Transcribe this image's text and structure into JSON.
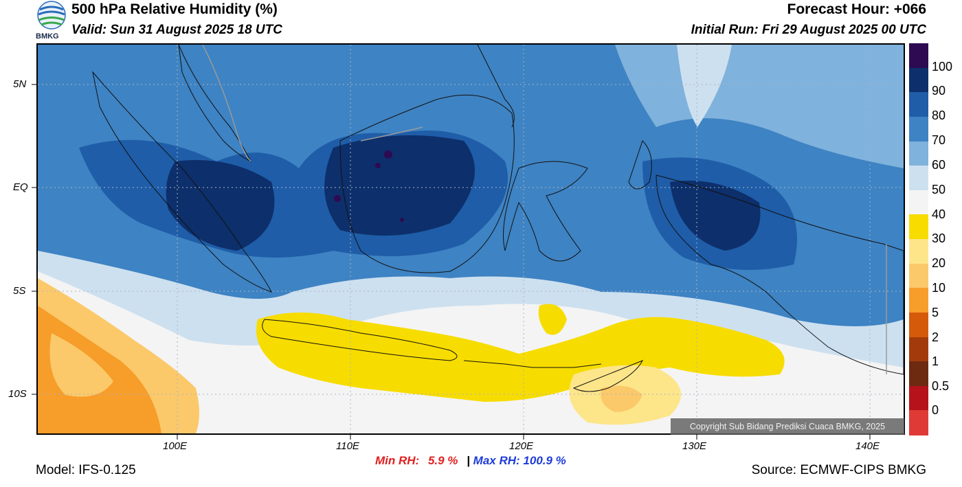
{
  "header": {
    "title": "500 hPa Relative Humidity (%)",
    "valid": "Valid: Sun 31 August 2025 18 UTC",
    "forecast_hour": "Forecast Hour: +066",
    "initial_run": "Initial Run: Fri 29 August 2025 00 UTC",
    "logo_text": "BMKG"
  },
  "axes": {
    "lat_labels": [
      "5N",
      "EQ",
      "5S",
      "10S"
    ],
    "lon_labels": [
      "100E",
      "110E",
      "120E",
      "130E",
      "140E"
    ]
  },
  "colorbar": {
    "labels": [
      "100",
      "90",
      "80",
      "70",
      "60",
      "50",
      "40",
      "30",
      "20",
      "10",
      "5",
      "2",
      "1",
      "0.5",
      "0"
    ],
    "colors": [
      "#2e0a52",
      "#0d2f6b",
      "#1f5da8",
      "#3e83c3",
      "#7fb2dc",
      "#cde0ef",
      "#f4f4f4",
      "#f7dc00",
      "#fde58a",
      "#fbc96a",
      "#f79d2a",
      "#d55a0a",
      "#a23b0c",
      "#6d2a10",
      "#b5121b",
      "#e03a36"
    ]
  },
  "stats": {
    "min_label": "Min RH:",
    "min_value": "5.9 %",
    "separator": "|",
    "max_label": "Max RH:",
    "max_value": "100.9 %"
  },
  "footer": {
    "model": "Model: IFS-0.125",
    "source": "Source: ECMWF-CIPS BMKG",
    "copyright": "Copyright Sub Bidang Prediksi Cuaca BMKG, 2025"
  }
}
